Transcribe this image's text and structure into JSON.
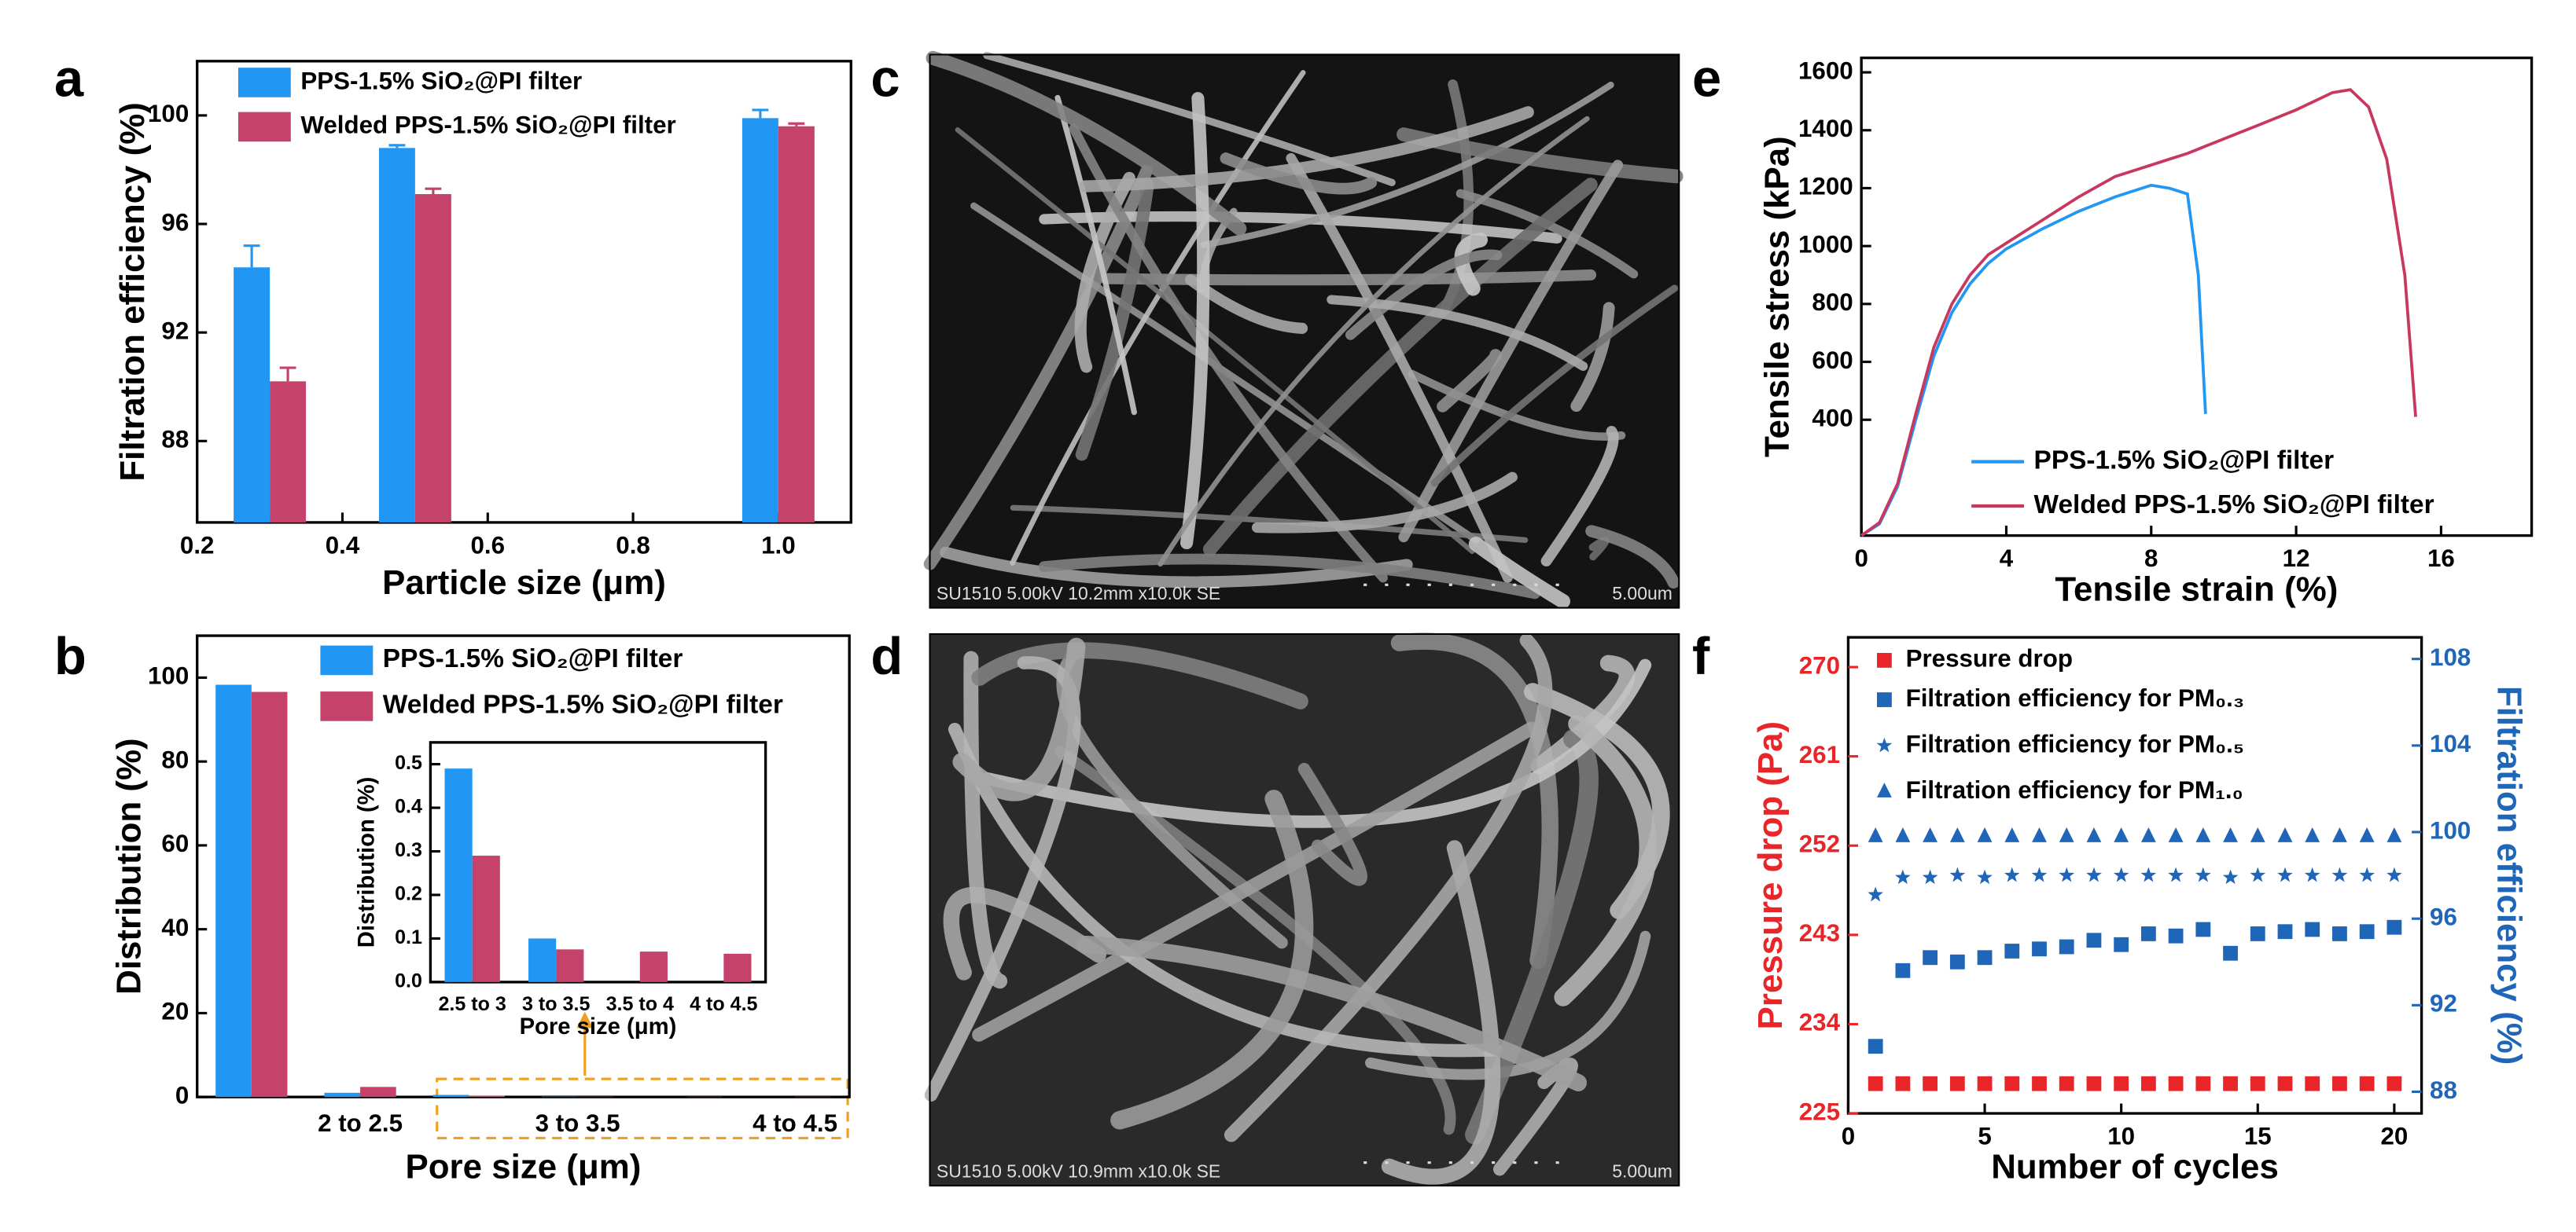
{
  "chart_data": [
    {
      "type": "bar",
      "panel_label": "a",
      "x_label": "Particle size (μm)",
      "y_label": "Filtration efficiency (%)",
      "x": [
        0.3,
        0.5,
        1.0
      ],
      "series": [
        {
          "name": "PPS-1.5% SiO₂@PI filter",
          "color": "#2196f3",
          "values": [
            94.4,
            98.8,
            99.9
          ],
          "errors": [
            0.8,
            0.1,
            0.3
          ]
        },
        {
          "name": "Welded PPS-1.5% SiO₂@PI filter",
          "color": "#c5426a",
          "values": [
            90.2,
            97.1,
            99.6
          ],
          "errors": [
            0.5,
            0.2,
            0.1
          ]
        }
      ],
      "xlim": [
        0.2,
        1.1
      ],
      "xticks": [
        0.2,
        0.4,
        0.6,
        0.8,
        {
          "value": 1,
          "label": "1.0"
        }
      ],
      "ylim": [
        85,
        102
      ],
      "yticks": [
        88,
        92,
        96,
        100
      ],
      "legend": "top-left"
    },
    {
      "type": "bar",
      "panel_label": "b",
      "x_label": "Pore size (μm)",
      "y_label": "Distribution (%)",
      "categories": [
        null,
        "2 to 2.5",
        null,
        "3 to 3.5",
        null,
        "4 to 4.5"
      ],
      "series": [
        {
          "name": "PPS-1.5% SiO₂@PI filter",
          "color": "#2196f3",
          "values": [
            98.3,
            1.0,
            0.5,
            0.1,
            0,
            0
          ]
        },
        {
          "name": "Welded PPS-1.5% SiO₂@PI filter",
          "color": "#c5426a",
          "values": [
            96.6,
            2.4,
            0.3,
            0.08,
            0.07,
            0.07
          ]
        }
      ],
      "ylim": [
        0,
        110
      ],
      "yticks": [
        0,
        20,
        40,
        60,
        80,
        100
      ],
      "legend": "top-right",
      "inset": {
        "type": "bar",
        "x_label": "Pore size (μm)",
        "y_label": "Distribution (%)",
        "categories": [
          "2.5 to 3",
          "3 to 3.5",
          "3.5 to 4",
          "4 to 4.5"
        ],
        "series": [
          {
            "color": "#2196f3",
            "values": [
              0.49,
              0.1,
              0,
              0
            ]
          },
          {
            "color": "#c5426a",
            "values": [
              0.29,
              0.075,
              0.07,
              0.065
            ]
          }
        ],
        "ylim": [
          0,
          0.55
        ],
        "yticks": [
          {
            "value": 0,
            "label": "0.0"
          },
          0.1,
          0.2,
          0.3,
          0.4,
          0.5
        ]
      }
    },
    {
      "type": "line",
      "panel_label": "e",
      "x_label": "Tensile strain (%)",
      "y_label": "Tensile stress (kPa)",
      "x": [
        0,
        0.5,
        1,
        1.5,
        2,
        2.5,
        3,
        3.5,
        4,
        5,
        6,
        7,
        8,
        8.5,
        9,
        9.3,
        9.5,
        10,
        11,
        12,
        13,
        13.5,
        14,
        14.5,
        15,
        15.3
      ],
      "series": [
        {
          "name": "PPS-1.5% SiO₂@PI filter",
          "color": "#2196f3",
          "values": [
            0,
            40,
            170,
            400,
            620,
            770,
            870,
            940,
            990,
            1060,
            1120,
            1170,
            1210,
            1200,
            1180,
            900,
            420,
            null,
            null,
            null,
            null,
            null,
            null,
            null,
            null,
            null
          ]
        },
        {
          "name": "Welded PPS-1.5% SiO₂@PI filter",
          "color": "#c8385e",
          "values": [
            0,
            45,
            180,
            420,
            650,
            800,
            900,
            970,
            1010,
            1090,
            1170,
            1240,
            1280,
            1300,
            1320,
            1335,
            1345,
            1370,
            1420,
            1470,
            1530,
            1540,
            1480,
            1300,
            900,
            410
          ]
        }
      ],
      "xlim": [
        0,
        18.5
      ],
      "xticks": [
        0,
        4,
        8,
        12,
        16
      ],
      "ylim": [
        0,
        1650
      ],
      "yticks": [
        400,
        600,
        800,
        1000,
        1200,
        1400,
        1600
      ],
      "legend": "bottom-right"
    },
    {
      "type": "scatter",
      "panel_label": "f",
      "x_label": "Number of cycles",
      "y_label": "Pressure drop (Pa)",
      "y2_label": "Filtration efficiency (%)",
      "y_color": "#e8262a",
      "y2_color": "#1f66b8",
      "x": [
        1,
        2,
        3,
        4,
        5,
        6,
        7,
        8,
        9,
        10,
        11,
        12,
        13,
        14,
        15,
        16,
        17,
        18,
        19,
        20
      ],
      "series": [
        {
          "name": "Pressure drop",
          "color": "#e8262a",
          "marker": "square",
          "values": [
            228,
            228,
            228,
            228,
            228,
            228,
            228,
            228,
            228,
            228,
            228,
            228,
            228,
            228,
            228,
            228,
            228,
            228,
            228,
            228
          ]
        },
        {
          "name": "Filtration efficiency for PM₀.₃",
          "color": "#1f66b8",
          "marker": "square",
          "axis": "y2",
          "values": [
            90.1,
            93.6,
            94.2,
            94.0,
            94.2,
            94.5,
            94.6,
            94.7,
            95.0,
            94.8,
            95.3,
            95.2,
            95.5,
            94.4,
            95.3,
            95.4,
            95.5,
            95.3,
            95.4,
            95.6
          ]
        },
        {
          "name": "Filtration efficiency for PM₀.₅",
          "color": "#1f66b8",
          "marker": "star",
          "axis": "y2",
          "values": [
            97.1,
            97.9,
            97.9,
            98.0,
            97.9,
            98.0,
            98.0,
            98.0,
            98.0,
            98.0,
            98.0,
            98.0,
            98.0,
            97.9,
            98.0,
            98.0,
            98.0,
            98.0,
            98.0,
            98.0
          ]
        },
        {
          "name": "Filtration efficiency for PM₁.₀",
          "color": "#1f66b8",
          "marker": "triangle",
          "axis": "y2",
          "values": [
            99.8,
            99.8,
            99.8,
            99.8,
            99.8,
            99.8,
            99.8,
            99.8,
            99.8,
            99.8,
            99.8,
            99.8,
            99.8,
            99.8,
            99.8,
            99.8,
            99.8,
            99.8,
            99.8,
            99.8
          ]
        }
      ],
      "xlim": [
        0,
        21
      ],
      "xticks": [
        0,
        5,
        10,
        15,
        20
      ],
      "ylim": [
        225,
        273
      ],
      "yticks": [
        225,
        234,
        243,
        252,
        261,
        270
      ],
      "y2lim": [
        87,
        109
      ],
      "y2ticks": [
        88,
        92,
        96,
        100,
        104,
        108
      ],
      "legend": "top-left"
    }
  ],
  "images": [
    {
      "panel_label": "c",
      "caption": "SU1510 5.00kV 10.2mm x10.0k SE",
      "scale_label": "5.00um"
    },
    {
      "panel_label": "d",
      "caption": "SU1510 5.00kV 10.9mm x10.0k SE",
      "scale_label": "5.00um"
    }
  ]
}
